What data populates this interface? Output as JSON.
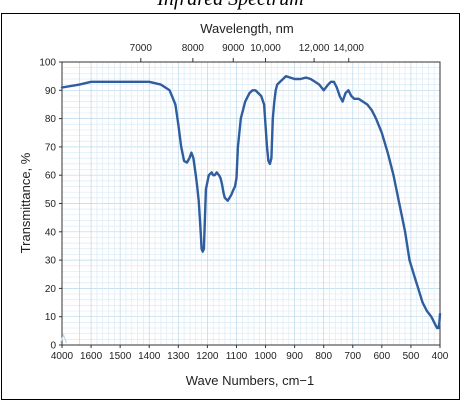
{
  "chart_data": {
    "type": "line",
    "title": "Infrared Spectrum",
    "top_axis_label": "Wavelength, nm",
    "xlabel": "Wave Numbers, cm−1",
    "ylabel": "Transmittance, %",
    "ylim": [
      0,
      100
    ],
    "y_ticks": [
      "0",
      "10",
      "20",
      "30",
      "40",
      "50",
      "60",
      "70",
      "80",
      "90",
      "100"
    ],
    "x_tick_labels": [
      "4000",
      "1600",
      "1500",
      "1400",
      "1300",
      "1200",
      "1100",
      "1000",
      "900",
      "800",
      "700",
      "600",
      "500",
      "400"
    ],
    "top_tick_labels": [
      {
        "label": "7000",
        "wn": 1429
      },
      {
        "label": "8000",
        "wn": 1250
      },
      {
        "label": "9000",
        "wn": 1111
      },
      {
        "label": "10,000",
        "wn": 1000
      },
      {
        "label": "12,000",
        "wn": 833
      },
      {
        "label": "14,000",
        "wn": 714
      }
    ],
    "grid": true,
    "line_color": "#2f5d9e",
    "series": [
      {
        "x": [
          4000,
          1650,
          1600,
          1500,
          1400,
          1360,
          1330,
          1310,
          1300,
          1290,
          1280,
          1270,
          1262,
          1255,
          1248,
          1240,
          1235,
          1230,
          1226,
          1222,
          1220,
          1216,
          1212,
          1205,
          1195,
          1185,
          1180,
          1175,
          1168,
          1160,
          1155,
          1150,
          1145,
          1140,
          1130,
          1118,
          1110,
          1105,
          1100,
          1095,
          1085,
          1070,
          1055,
          1045,
          1035,
          1025,
          1015,
          1005,
          995,
          990,
          985,
          980,
          975,
          970,
          965,
          960,
          950,
          940,
          930,
          915,
          900,
          880,
          860,
          845,
          830,
          815,
          800,
          785,
          775,
          765,
          755,
          745,
          735,
          725,
          715,
          705,
          695,
          680,
          665,
          650,
          635,
          620,
          600,
          580,
          560,
          540,
          520,
          505,
          490,
          475,
          460,
          445,
          430,
          420,
          415,
          410,
          405,
          402,
          400
        ],
        "y": [
          91,
          92,
          93,
          93,
          93,
          92,
          90,
          85,
          78,
          70,
          65,
          64.5,
          66,
          68,
          66,
          60,
          56,
          51,
          45,
          38,
          34,
          33,
          34,
          55,
          60,
          61,
          60,
          60,
          61,
          60,
          59,
          57,
          54,
          52,
          51,
          53,
          55,
          56,
          59,
          70,
          80,
          86,
          89,
          90,
          90,
          89,
          88,
          85,
          70,
          65,
          64,
          66,
          80,
          86,
          90,
          92,
          93,
          94,
          95,
          94.5,
          94,
          94,
          94.5,
          94,
          93,
          92,
          90,
          92,
          93,
          93,
          91,
          88,
          86,
          89,
          90,
          88,
          87,
          87,
          86,
          85,
          83,
          80,
          75,
          68,
          60,
          50,
          40,
          30,
          25,
          20,
          15,
          12,
          10,
          8,
          7,
          6,
          6,
          8,
          11
        ]
      }
    ]
  }
}
